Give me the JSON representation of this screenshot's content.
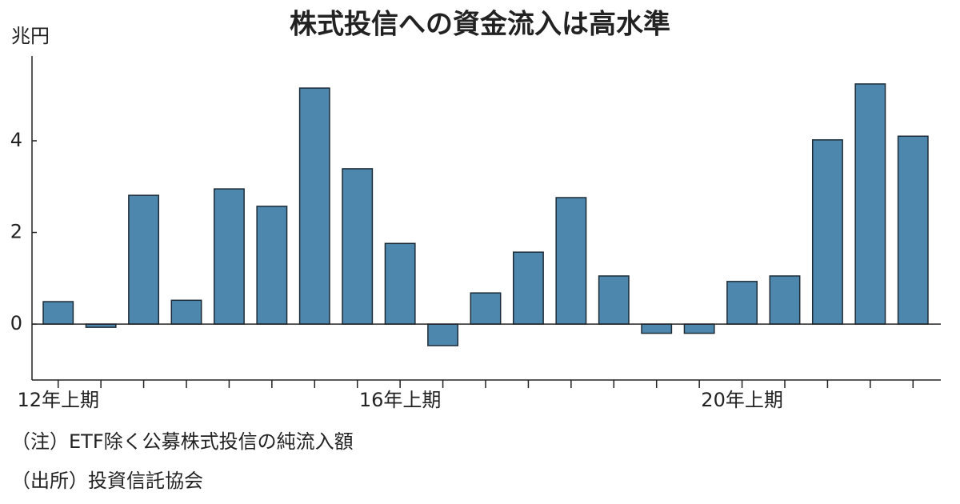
{
  "chart_data": {
    "type": "bar",
    "title": "株式投信への資金流入は高水準",
    "y_unit": "兆円",
    "categories": [
      "12年上期",
      null,
      null,
      null,
      null,
      null,
      null,
      null,
      "16年上期",
      null,
      null,
      null,
      null,
      null,
      null,
      null,
      "20年上期",
      null,
      null,
      null,
      null
    ],
    "values": [
      0.49,
      -0.07,
      2.81,
      0.52,
      2.95,
      2.57,
      5.15,
      3.39,
      1.76,
      -0.47,
      0.68,
      1.57,
      2.76,
      1.05,
      -0.2,
      -0.2,
      0.93,
      1.05,
      4.02,
      5.24,
      4.1
    ],
    "color": "#4d87ae",
    "ylim": [
      -1.22,
      5.85
    ],
    "yticks": [
      0,
      2,
      4
    ],
    "notes": [
      "（注）ETF除く公募株式投信の純流入額",
      "（出所）投資信託協会"
    ]
  }
}
